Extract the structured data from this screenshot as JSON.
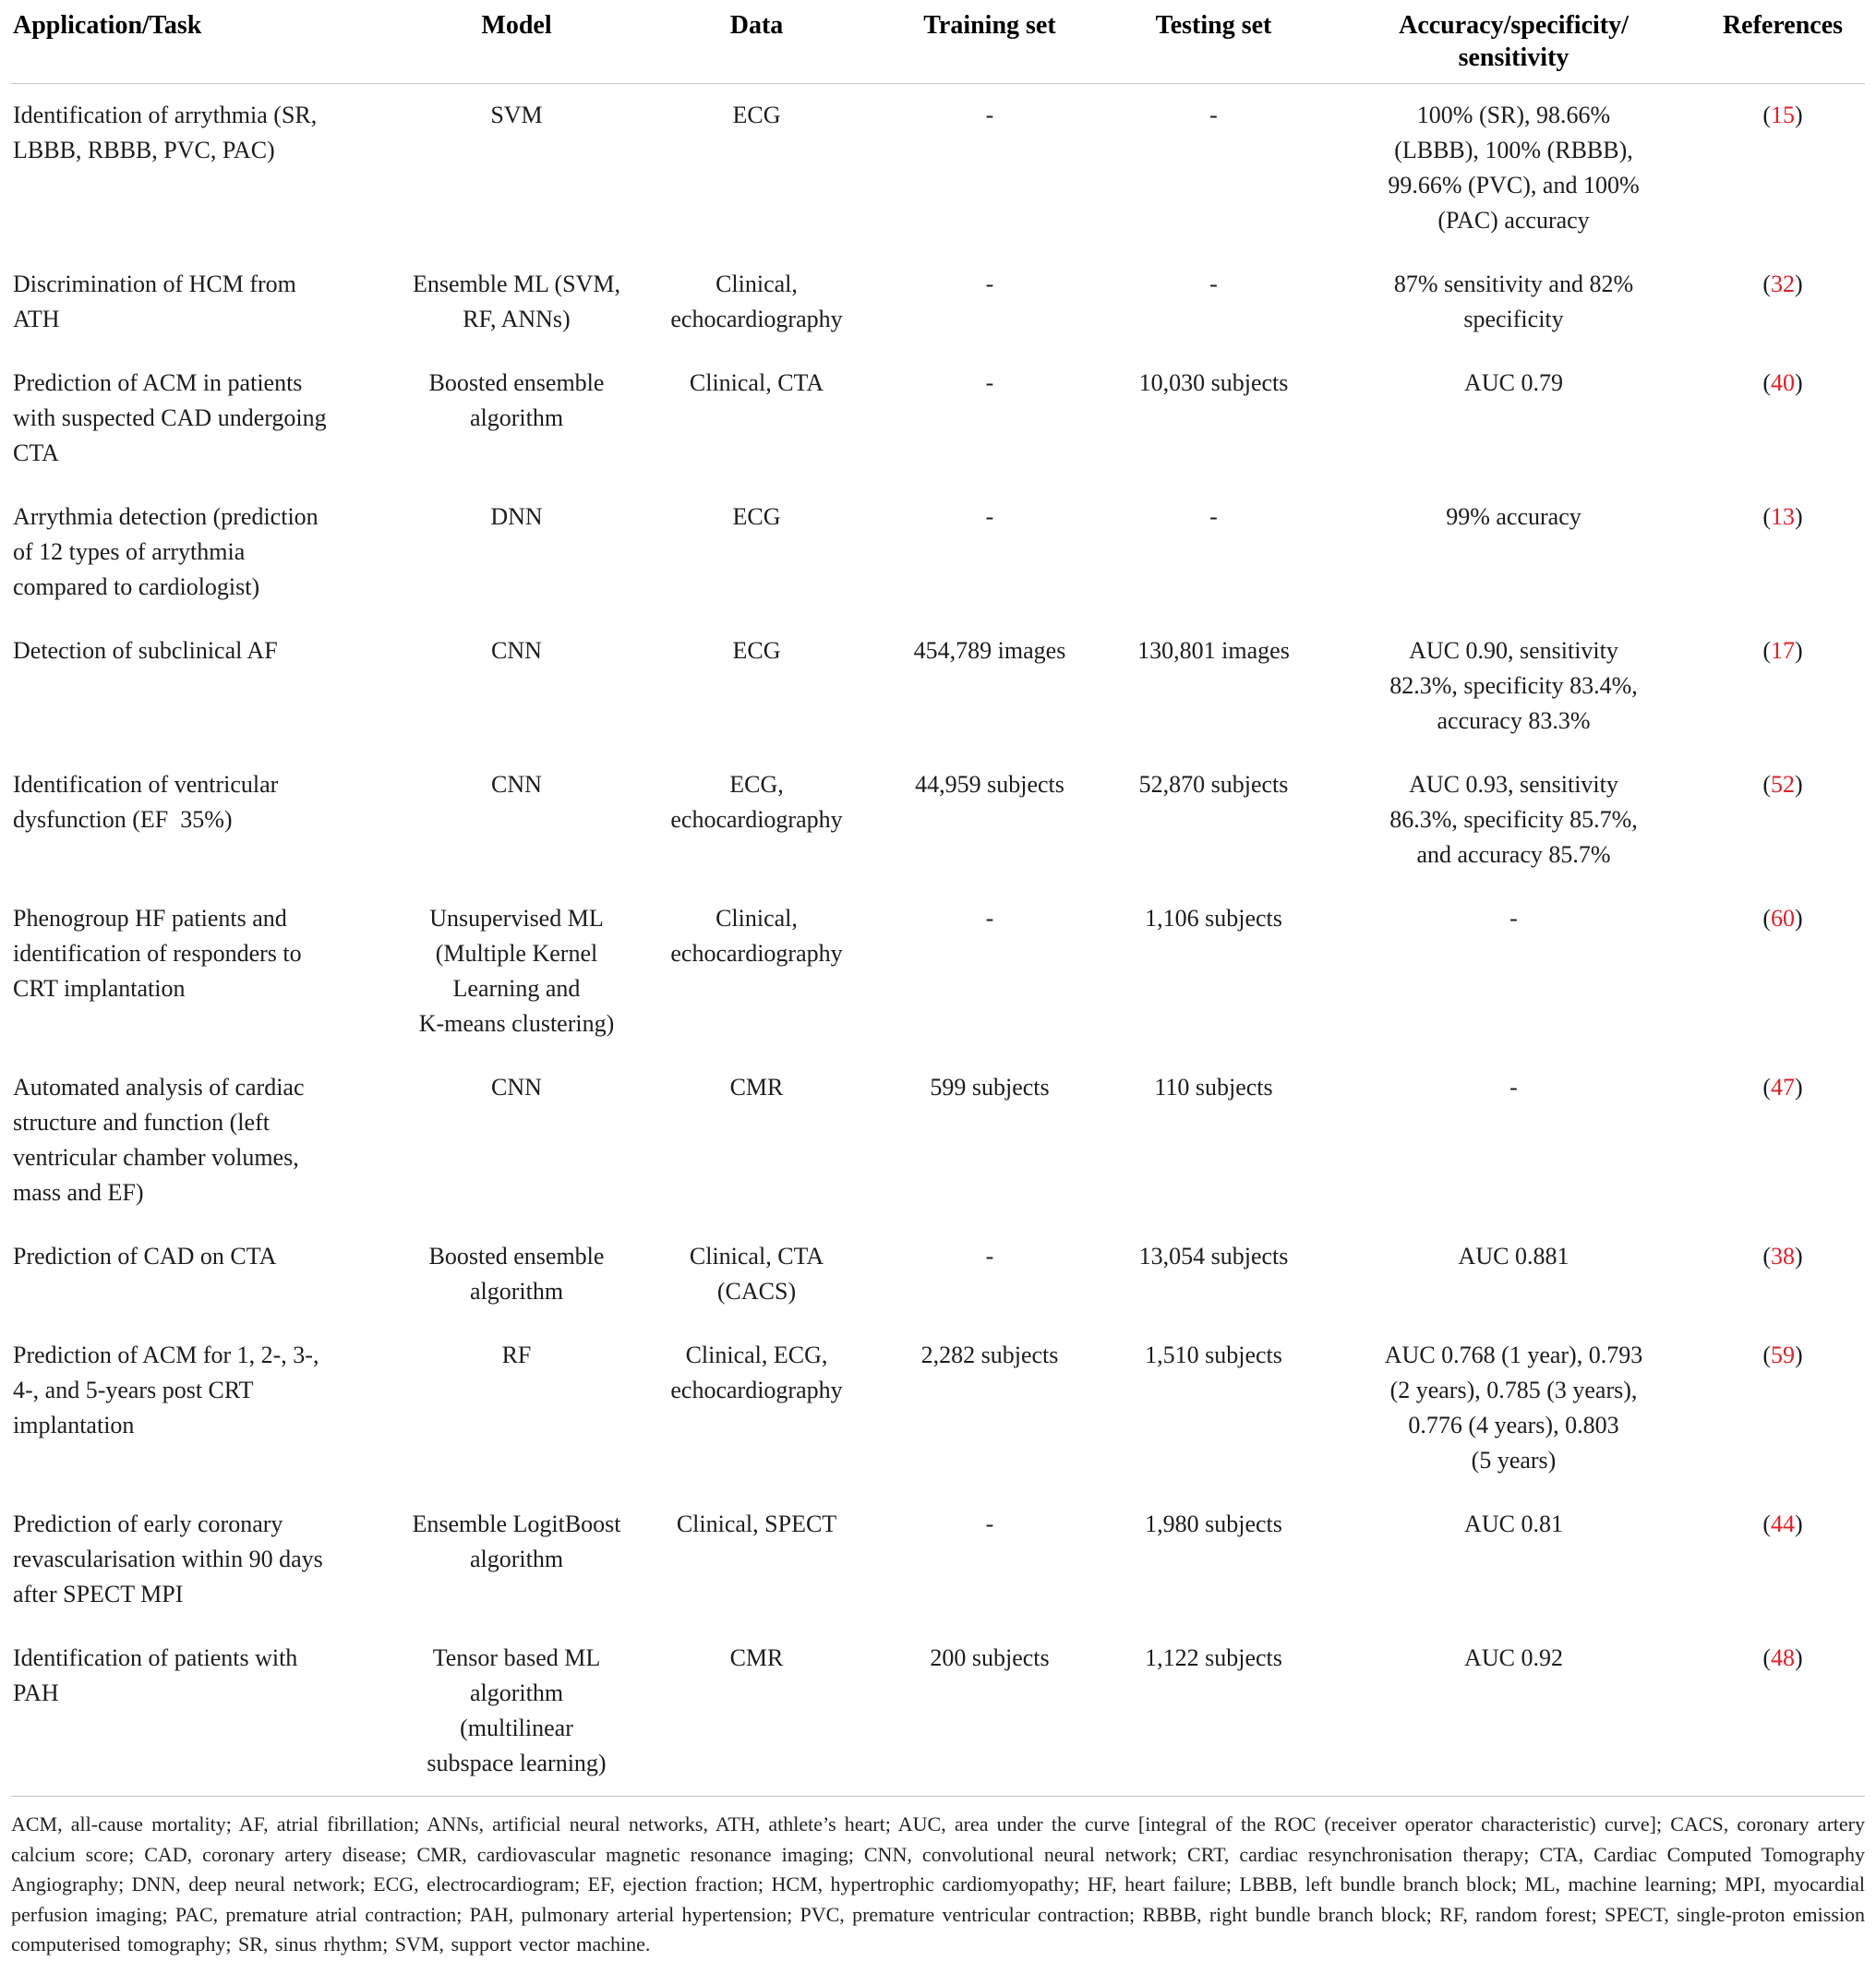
{
  "table": {
    "columns": [
      {
        "key": "application",
        "label": "Application/Task"
      },
      {
        "key": "model",
        "label": "Model"
      },
      {
        "key": "data",
        "label": "Data"
      },
      {
        "key": "training",
        "label": "Training set"
      },
      {
        "key": "testing",
        "label": "Testing set"
      },
      {
        "key": "accuracy",
        "label": "Accuracy/specificity/\nsensitivity"
      },
      {
        "key": "references",
        "label": "References"
      }
    ],
    "rows": [
      {
        "application": "Identification of arrythmia (SR,\nLBBB, RBBB, PVC, PAC)",
        "model": "SVM",
        "data": "ECG",
        "training": "-",
        "testing": "-",
        "accuracy": "100% (SR), 98.66%\n(LBBB), 100% (RBBB),\n99.66% (PVC), and 100%\n(PAC) accuracy",
        "reference": {
          "prefix": "(",
          "number": "15",
          "suffix": ")"
        }
      },
      {
        "application": "Discrimination of HCM from\nATH",
        "model": "Ensemble ML (SVM,\nRF, ANNs)",
        "data": "Clinical,\nechocardiography",
        "training": "-",
        "testing": "-",
        "accuracy": "87% sensitivity and 82%\nspecificity",
        "reference": {
          "prefix": "(",
          "number": "32",
          "suffix": ")"
        }
      },
      {
        "application": "Prediction of ACM in patients\nwith suspected CAD undergoing\nCTA",
        "model": "Boosted ensemble\nalgorithm",
        "data": "Clinical, CTA",
        "training": "-",
        "testing": "10,030 subjects",
        "accuracy": "AUC 0.79",
        "reference": {
          "prefix": "(",
          "number": "40",
          "suffix": ")"
        }
      },
      {
        "application": "Arrythmia detection (prediction\nof 12 types of arrythmia\ncompared to cardiologist)",
        "model": "DNN",
        "data": "ECG",
        "training": "-",
        "testing": "-",
        "accuracy": "99% accuracy",
        "reference": {
          "prefix": "(",
          "number": "13",
          "suffix": ")"
        }
      },
      {
        "application": "Detection of subclinical AF",
        "model": "CNN",
        "data": "ECG",
        "training": "454,789 images",
        "testing": "130,801 images",
        "accuracy": "AUC 0.90, sensitivity\n82.3%, specificity 83.4%,\naccuracy 83.3%",
        "reference": {
          "prefix": "(",
          "number": "17",
          "suffix": ")"
        }
      },
      {
        "application": "Identification of ventricular\ndysfunction (EF  35%)",
        "model": "CNN",
        "data": "ECG,\nechocardiography",
        "training": "44,959 subjects",
        "testing": "52,870 subjects",
        "accuracy": "AUC 0.93, sensitivity\n86.3%, specificity 85.7%,\nand accuracy 85.7%",
        "reference": {
          "prefix": "(",
          "number": "52",
          "suffix": ")"
        }
      },
      {
        "application": "Phenogroup HF patients and\nidentification of responders to\nCRT implantation",
        "model": "Unsupervised ML\n(Multiple Kernel\nLearning and\nK-means clustering)",
        "data": "Clinical,\nechocardiography",
        "training": "-",
        "testing": "1,106 subjects",
        "accuracy": "-",
        "reference": {
          "prefix": "(",
          "number": "60",
          "suffix": ")"
        }
      },
      {
        "application": "Automated analysis of cardiac\nstructure and function (left\nventricular chamber volumes,\nmass and EF)",
        "model": "CNN",
        "data": "CMR",
        "training": "599 subjects",
        "testing": "110 subjects",
        "accuracy": "-",
        "reference": {
          "prefix": "(",
          "number": "47",
          "suffix": ")"
        }
      },
      {
        "application": "Prediction of CAD on CTA",
        "model": "Boosted ensemble\nalgorithm",
        "data": "Clinical, CTA\n(CACS)",
        "training": "-",
        "testing": "13,054 subjects",
        "accuracy": "AUC 0.881",
        "reference": {
          "prefix": "(",
          "number": "38",
          "suffix": ")"
        }
      },
      {
        "application": "Prediction of ACM for 1, 2-, 3-,\n4-, and 5-years post CRT\nimplantation",
        "model": "RF",
        "data": "Clinical, ECG,\nechocardiography",
        "training": "2,282 subjects",
        "testing": "1,510 subjects",
        "accuracy": "AUC 0.768 (1 year), 0.793\n(2 years), 0.785 (3 years),\n0.776 (4 years), 0.803\n(5 years)",
        "reference": {
          "prefix": "(",
          "number": "59",
          "suffix": ")"
        }
      },
      {
        "application": "Prediction of early coronary\nrevascularisation within 90 days\nafter SPECT MPI",
        "model": "Ensemble LogitBoost\nalgorithm",
        "data": "Clinical, SPECT",
        "training": "-",
        "testing": "1,980 subjects",
        "accuracy": "AUC 0.81",
        "reference": {
          "prefix": "(",
          "number": "44",
          "suffix": ")"
        }
      },
      {
        "application": "Identification of patients with\nPAH",
        "model": "Tensor based ML\nalgorithm\n(multilinear\nsubspace learning)",
        "data": "CMR",
        "training": "200 subjects",
        "testing": "1,122 subjects",
        "accuracy": "AUC 0.92",
        "reference": {
          "prefix": "(",
          "number": "48",
          "suffix": ")"
        }
      }
    ]
  },
  "footnote": "ACM, all-cause mortality; AF, atrial fibrillation; ANNs, artificial neural networks, ATH, athlete’s heart; AUC, area under the curve [integral of the ROC (receiver operator characteristic) curve]; CACS, coronary artery calcium score; CAD, coronary artery disease; CMR, cardiovascular magnetic resonance imaging; CNN, convolutional neural network; CRT, cardiac resynchronisation therapy; CTA, Cardiac Computed Tomography Angiography; DNN, deep neural network; ECG, electrocardiogram; EF, ejection fraction; HCM, hypertrophic cardiomyopathy; HF, heart failure; LBBB, left bundle branch block; ML, machine learning; MPI, myocardial perfusion imaging; PAC, premature atrial contraction; PAH, pulmonary arterial hypertension; PVC, premature ventricular contraction; RBBB, right bundle branch block; RF, random forest; SPECT, single-proton emission computerised tomography; SR, sinus rhythm; SVM, support vector machine.",
  "colors": {
    "reference_link": "#e11e26",
    "text": "#1c1c1c",
    "rule": "#c4c4c4"
  }
}
